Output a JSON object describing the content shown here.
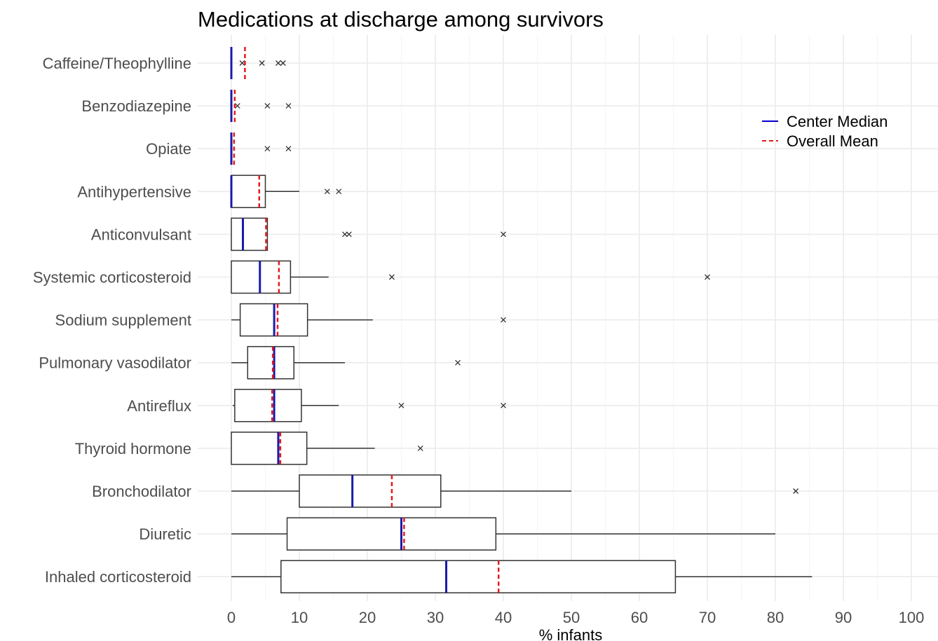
{
  "chart_data": {
    "type": "boxplot",
    "title": "Medications at discharge among survivors",
    "xlabel": "% infants",
    "ylabel": "",
    "xlim": [
      -5,
      105
    ],
    "xticks": [
      0,
      10,
      20,
      30,
      40,
      50,
      60,
      70,
      80,
      90,
      100
    ],
    "grid": true,
    "legend": {
      "position": "top-right",
      "entries": [
        {
          "label": "Center Median",
          "style": "solid",
          "color": "#0000cc"
        },
        {
          "label": "Overall Mean",
          "style": "dashed",
          "color": "#e41a1c"
        }
      ]
    },
    "colors": {
      "median": "#1a1aaa",
      "mean": "#e41a1c",
      "box": "#333333",
      "grid": "#ebebeb"
    },
    "categories": [
      "Caffeine/Theophylline",
      "Benzodiazepine",
      "Opiate",
      "Antihypertensive",
      "Anticonvulsant",
      "Systemic corticosteroid",
      "Sodium supplement",
      "Pulmonary vasodilator",
      "Antireflux",
      "Thyroid hormone",
      "Bronchodilator",
      "Diuretic",
      "Inhaled corticosteroid"
    ],
    "boxes": [
      {
        "min": 0,
        "q1": 0,
        "median": 0,
        "q3": 0,
        "max": 0,
        "mean": 2.0,
        "outliers": [
          1.6,
          4.5,
          6.9,
          7.6
        ]
      },
      {
        "min": 0,
        "q1": 0,
        "median": 0,
        "q3": 0,
        "max": 0,
        "mean": 0.5,
        "outliers": [
          0.9,
          5.3,
          8.4
        ]
      },
      {
        "min": 0,
        "q1": 0,
        "median": 0,
        "q3": 0,
        "max": 0,
        "mean": 0.4,
        "outliers": [
          5.3,
          8.4
        ]
      },
      {
        "min": 0,
        "q1": 0,
        "median": 0,
        "q3": 5.0,
        "max": 10.0,
        "mean": 4.1,
        "outliers": [
          14.1,
          15.8
        ]
      },
      {
        "min": 0,
        "q1": 0,
        "median": 1.7,
        "q3": 5.3,
        "max": 5.3,
        "mean": 5.1,
        "outliers": [
          16.7,
          17.3,
          40.0
        ]
      },
      {
        "min": 0,
        "q1": 0,
        "median": 4.2,
        "q3": 8.7,
        "max": 14.3,
        "mean": 7.0,
        "outliers": [
          23.6,
          70.0
        ]
      },
      {
        "min": 0,
        "q1": 1.3,
        "median": 6.3,
        "q3": 11.2,
        "max": 20.8,
        "mean": 6.8,
        "outliers": [
          40.0
        ]
      },
      {
        "min": 0,
        "q1": 2.4,
        "median": 6.3,
        "q3": 9.2,
        "max": 16.7,
        "mean": 6.1,
        "outliers": [
          33.3
        ]
      },
      {
        "min": 0.2,
        "q1": 0.5,
        "median": 6.3,
        "q3": 10.3,
        "max": 15.8,
        "mean": 6.0,
        "outliers": [
          25.0,
          40.0
        ]
      },
      {
        "min": 0,
        "q1": 0,
        "median": 6.9,
        "q3": 11.1,
        "max": 21.1,
        "mean": 7.2,
        "outliers": [
          27.8
        ]
      },
      {
        "min": 0,
        "q1": 10.0,
        "median": 17.8,
        "q3": 30.8,
        "max": 50.0,
        "mean": 23.6,
        "outliers": [
          83.0
        ]
      },
      {
        "min": 0,
        "q1": 8.2,
        "median": 25.0,
        "q3": 38.9,
        "max": 80.0,
        "mean": 25.4,
        "outliers": []
      },
      {
        "min": 0,
        "q1": 7.3,
        "median": 31.6,
        "q3": 65.3,
        "max": 85.4,
        "mean": 39.3,
        "outliers": []
      }
    ]
  }
}
